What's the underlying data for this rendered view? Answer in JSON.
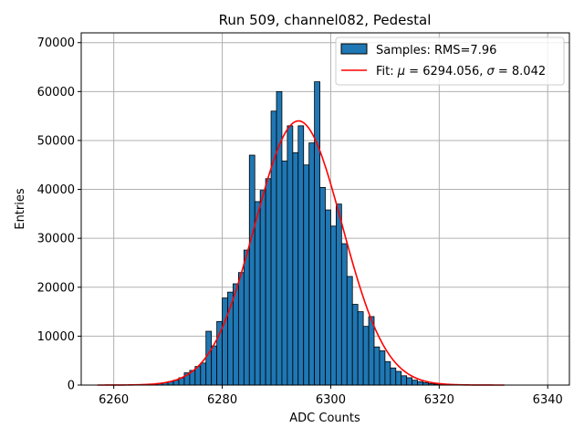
{
  "chart_data": {
    "type": "bar",
    "title": "Run 509, channel082, Pedestal",
    "xlabel": "ADC Counts",
    "ylabel": "Entries",
    "xlim": [
      6254,
      6344
    ],
    "ylim": [
      0,
      72000
    ],
    "xticks": [
      6260,
      6280,
      6300,
      6320,
      6340
    ],
    "yticks": [
      0,
      10000,
      20000,
      30000,
      40000,
      50000,
      60000,
      70000
    ],
    "grid": true,
    "legend_position": "upper-right",
    "colors": {
      "bar_fill": "#1f77b4",
      "bar_edge": "#000000",
      "fit_line": "#ff0000",
      "grid": "#b0b0b0"
    },
    "histogram": {
      "name": "Samples: RMS=7.96",
      "bin_start": 6266,
      "bin_width": 1,
      "counts": [
        100,
        200,
        300,
        450,
        700,
        1000,
        1500,
        2500,
        3000,
        3800,
        4500,
        11000,
        8000,
        13000,
        17800,
        19000,
        20700,
        23000,
        27600,
        47000,
        37500,
        39800,
        42200,
        56000,
        60000,
        45800,
        53000,
        47500,
        53000,
        45000,
        49500,
        62000,
        40400,
        35800,
        32500,
        37000,
        28900,
        22200,
        16500,
        15000,
        12000,
        14000,
        7800,
        7000,
        4800,
        3500,
        2800,
        1900,
        1500,
        1000,
        700,
        500,
        300,
        200,
        150,
        100,
        60
      ]
    },
    "fit": {
      "name_prefix": "Fit: ",
      "name_mu": "μ",
      "name_mu_value": " = 6294.056, ",
      "name_sigma": "σ",
      "name_sigma_value": " = 8.042",
      "mu": 6294.056,
      "sigma": 8.042,
      "amplitude": 54000,
      "x_range": [
        6257,
        6332
      ]
    }
  }
}
